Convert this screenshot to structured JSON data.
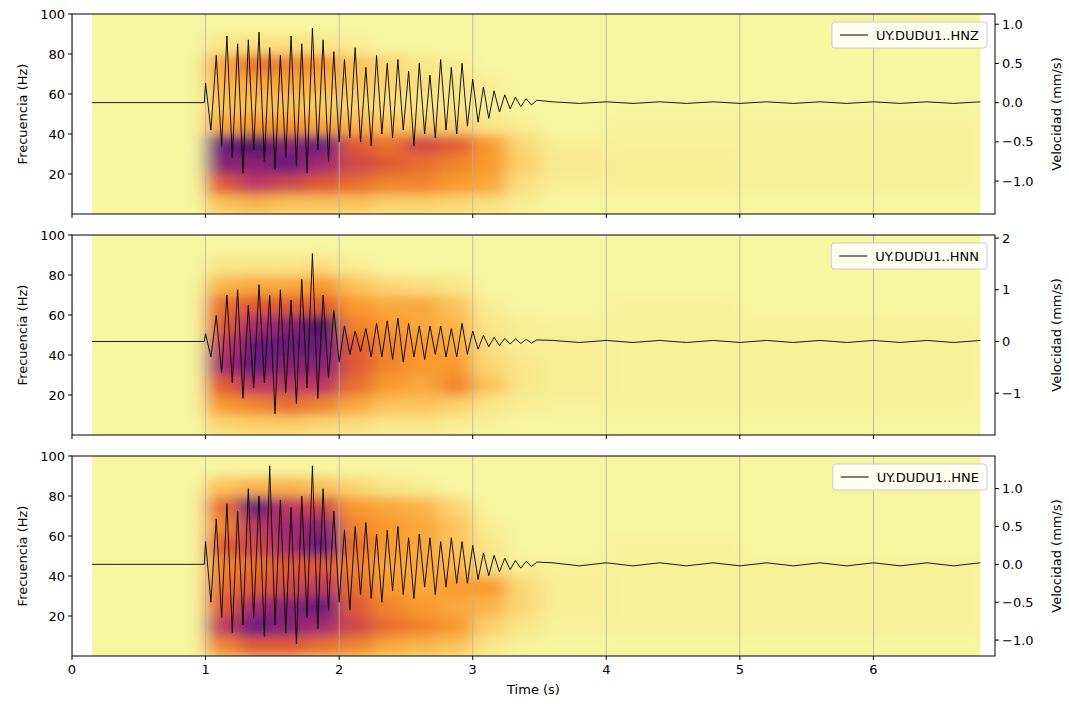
{
  "chart_data": [
    {
      "type": "spectrogram",
      "ylabel": "Frecuencia (Hz)",
      "y2label": "Velocidad (mm/s)",
      "legend": "upper right",
      "grid": true,
      "tick_labels": "y",
      "xlim": [
        0,
        6.91
      ],
      "xticks": [
        0,
        1,
        2,
        3,
        4,
        5,
        6
      ],
      "ylim": [
        0,
        100
      ],
      "yticks": [
        20,
        40,
        60,
        80,
        100
      ],
      "y2lim": [
        -1.42,
        1.13
      ],
      "y2ticks": [
        {
          "value": -1.0,
          "label": "−1.0"
        },
        {
          "value": -0.5,
          "label": "−0.5"
        },
        {
          "value": 0.0,
          "label": "0.0"
        },
        {
          "value": 0.5,
          "label": "0.5"
        },
        {
          "value": 1.0,
          "label": "1.0"
        }
      ],
      "time_edges": [
        0.15,
        1.0,
        1.25,
        1.5,
        1.75,
        2.0,
        2.25,
        2.5,
        2.75,
        3.0,
        3.25,
        3.5,
        4.0,
        5.0,
        6.8
      ],
      "freq_edges": [
        0,
        10,
        20,
        30,
        40,
        50,
        60,
        70,
        80,
        90,
        100
      ],
      "cells": [
        [
          0,
          0,
          0,
          0,
          0,
          0,
          0,
          0,
          0,
          0
        ],
        [
          0.3,
          0.6,
          0.8,
          0.85,
          0.4,
          0.3,
          0.35,
          0.4,
          0.1,
          0
        ],
        [
          0.35,
          0.7,
          0.8,
          0.9,
          0.45,
          0.3,
          0.4,
          0.55,
          0.15,
          0
        ],
        [
          0.3,
          0.65,
          0.85,
          0.8,
          0.45,
          0.3,
          0.4,
          0.5,
          0.15,
          0
        ],
        [
          0.3,
          0.6,
          0.75,
          0.85,
          0.4,
          0.25,
          0.35,
          0.45,
          0.1,
          0
        ],
        [
          0.3,
          0.55,
          0.65,
          0.6,
          0.35,
          0.2,
          0.3,
          0.3,
          0.05,
          0
        ],
        [
          0.25,
          0.5,
          0.6,
          0.55,
          0.3,
          0.15,
          0.2,
          0.2,
          0,
          0
        ],
        [
          0.25,
          0.5,
          0.55,
          0.65,
          0.25,
          0.1,
          0.15,
          0.1,
          0,
          0
        ],
        [
          0.2,
          0.45,
          0.5,
          0.6,
          0.2,
          0.1,
          0.1,
          0.05,
          0,
          0
        ],
        [
          0.15,
          0.4,
          0.45,
          0.45,
          0.1,
          0.05,
          0.05,
          0,
          0,
          0
        ],
        [
          0.05,
          0.15,
          0.25,
          0.2,
          0.05,
          0,
          0,
          0,
          0,
          0
        ],
        [
          0,
          0.05,
          0.08,
          0.05,
          0,
          0,
          0,
          0,
          0,
          0
        ],
        [
          0,
          0.05,
          0.05,
          0.03,
          0.03,
          0,
          0,
          0,
          0,
          0
        ],
        [
          0,
          0.03,
          0.03,
          0.03,
          0.03,
          0,
          0,
          0,
          0,
          0
        ]
      ],
      "x": [
        0.15,
        0.99,
        1.0,
        1.04,
        1.08,
        1.12,
        1.16,
        1.2,
        1.24,
        1.28,
        1.32,
        1.36,
        1.4,
        1.44,
        1.48,
        1.52,
        1.56,
        1.6,
        1.64,
        1.68,
        1.72,
        1.76,
        1.8,
        1.84,
        1.88,
        1.92,
        1.96,
        2.0,
        2.04,
        2.08,
        2.12,
        2.16,
        2.2,
        2.24,
        2.28,
        2.32,
        2.36,
        2.4,
        2.44,
        2.48,
        2.52,
        2.56,
        2.6,
        2.64,
        2.68,
        2.72,
        2.76,
        2.8,
        2.84,
        2.88,
        2.92,
        2.96,
        3.0,
        3.04,
        3.08,
        3.12,
        3.16,
        3.2,
        3.24,
        3.28,
        3.32,
        3.36,
        3.4,
        3.44,
        3.48,
        3.6,
        3.8,
        4.0,
        4.2,
        4.4,
        4.6,
        4.8,
        5.0,
        5.2,
        5.4,
        5.6,
        5.8,
        6.0,
        6.2,
        6.4,
        6.6,
        6.8
      ],
      "series": [
        {
          "name": "UY.DUDU1..HNZ",
          "color": "#000000",
          "axis": "y2",
          "values": [
            0,
            0,
            0.25,
            -0.35,
            0.6,
            -0.55,
            0.85,
            -0.7,
            0.75,
            -0.9,
            0.8,
            -0.6,
            0.9,
            -0.75,
            0.7,
            -0.85,
            0.6,
            -0.7,
            0.85,
            -0.8,
            0.75,
            -0.9,
            0.95,
            -0.6,
            0.8,
            -0.75,
            0.65,
            -0.5,
            0.55,
            -0.45,
            0.7,
            -0.5,
            0.45,
            -0.55,
            0.6,
            -0.4,
            0.5,
            -0.45,
            0.55,
            -0.35,
            0.4,
            -0.55,
            0.5,
            -0.4,
            0.35,
            -0.45,
            0.55,
            -0.35,
            0.45,
            -0.4,
            0.5,
            -0.3,
            0.3,
            -0.25,
            0.2,
            -0.2,
            0.15,
            -0.12,
            0.1,
            -0.08,
            0.07,
            -0.05,
            0.05,
            -0.03,
            0.03,
            0.01,
            -0.01,
            0.01,
            -0.01,
            0.01,
            -0.01,
            0.01,
            -0.01,
            0.01,
            -0.01,
            0.01,
            -0.01,
            0.01,
            -0.01,
            0.01,
            -0.01,
            0.01
          ]
        }
      ]
    },
    {
      "type": "spectrogram",
      "ylabel": "Frecuencia (Hz)",
      "y2label": "Velocidad (mm/s)",
      "legend": "upper right",
      "grid": true,
      "tick_labels": "y",
      "xlim": [
        0,
        6.91
      ],
      "xticks": [
        0,
        1,
        2,
        3,
        4,
        5,
        6
      ],
      "ylim": [
        0,
        100
      ],
      "yticks": [
        20,
        40,
        60,
        80,
        100
      ],
      "y2lim": [
        -1.81,
        2.06
      ],
      "y2ticks": [
        {
          "value": -1,
          "label": "−1"
        },
        0,
        1,
        2
      ],
      "time_edges": [
        0.15,
        1.0,
        1.25,
        1.5,
        1.75,
        2.0,
        2.25,
        2.5,
        2.75,
        3.0,
        3.25,
        3.5,
        4.0,
        5.0,
        6.8
      ],
      "freq_edges": [
        0,
        10,
        20,
        30,
        40,
        50,
        60,
        70,
        80,
        90,
        100
      ],
      "cells": [
        [
          0,
          0,
          0,
          0,
          0,
          0,
          0,
          0,
          0,
          0
        ],
        [
          0.2,
          0.45,
          0.6,
          0.75,
          0.7,
          0.6,
          0.55,
          0.35,
          0.1,
          0
        ],
        [
          0.25,
          0.5,
          0.7,
          0.85,
          0.85,
          0.75,
          0.6,
          0.4,
          0.1,
          0
        ],
        [
          0.25,
          0.55,
          0.7,
          0.8,
          0.85,
          0.8,
          0.6,
          0.4,
          0.1,
          0
        ],
        [
          0.2,
          0.5,
          0.7,
          0.8,
          0.85,
          0.9,
          0.6,
          0.45,
          0.15,
          0
        ],
        [
          0.15,
          0.4,
          0.55,
          0.6,
          0.6,
          0.5,
          0.45,
          0.3,
          0.05,
          0
        ],
        [
          0.1,
          0.3,
          0.45,
          0.5,
          0.5,
          0.45,
          0.4,
          0.2,
          0,
          0
        ],
        [
          0.1,
          0.3,
          0.4,
          0.45,
          0.45,
          0.4,
          0.4,
          0.15,
          0,
          0
        ],
        [
          0.05,
          0.25,
          0.5,
          0.45,
          0.4,
          0.35,
          0.3,
          0.1,
          0,
          0
        ],
        [
          0.03,
          0.1,
          0.3,
          0.2,
          0.15,
          0.1,
          0.05,
          0,
          0,
          0
        ],
        [
          0,
          0.05,
          0.1,
          0.1,
          0.05,
          0.05,
          0,
          0,
          0,
          0
        ],
        [
          0,
          0.03,
          0.05,
          0.05,
          0.05,
          0.03,
          0,
          0,
          0,
          0
        ],
        [
          0,
          0.03,
          0.03,
          0.03,
          0.03,
          0.03,
          0.03,
          0,
          0,
          0
        ],
        [
          0,
          0.03,
          0.03,
          0.03,
          0.03,
          0.03,
          0,
          0,
          0,
          0
        ]
      ],
      "x": [
        0.15,
        0.99,
        1.0,
        1.04,
        1.08,
        1.12,
        1.16,
        1.2,
        1.24,
        1.28,
        1.32,
        1.36,
        1.4,
        1.44,
        1.48,
        1.52,
        1.56,
        1.6,
        1.64,
        1.68,
        1.72,
        1.76,
        1.8,
        1.84,
        1.88,
        1.92,
        1.96,
        2.0,
        2.04,
        2.08,
        2.12,
        2.16,
        2.2,
        2.24,
        2.28,
        2.32,
        2.36,
        2.4,
        2.44,
        2.48,
        2.52,
        2.56,
        2.6,
        2.64,
        2.68,
        2.72,
        2.76,
        2.8,
        2.84,
        2.88,
        2.92,
        2.96,
        3.0,
        3.04,
        3.08,
        3.12,
        3.16,
        3.2,
        3.24,
        3.28,
        3.32,
        3.36,
        3.4,
        3.44,
        3.48,
        3.6,
        3.8,
        4.0,
        4.2,
        4.4,
        4.6,
        4.8,
        5.0,
        5.2,
        5.4,
        5.6,
        5.8,
        6.0,
        6.2,
        6.4,
        6.6,
        6.8
      ],
      "series": [
        {
          "name": "UY.DUDU1..HNN",
          "color": "#000000",
          "axis": "y2",
          "values": [
            0,
            0,
            0.15,
            -0.3,
            0.5,
            -0.6,
            0.9,
            -0.8,
            1.0,
            -1.1,
            0.7,
            -0.9,
            1.1,
            -0.8,
            0.9,
            -1.4,
            1.0,
            -1.0,
            0.8,
            -1.2,
            1.2,
            -0.9,
            1.7,
            -1.1,
            0.9,
            -0.7,
            0.6,
            -0.4,
            0.3,
            -0.25,
            0.2,
            -0.2,
            0.25,
            -0.3,
            0.35,
            -0.3,
            0.4,
            -0.35,
            0.45,
            -0.4,
            0.35,
            -0.3,
            0.3,
            -0.35,
            0.3,
            -0.25,
            0.3,
            -0.3,
            0.25,
            -0.3,
            0.35,
            -0.25,
            0.2,
            -0.15,
            0.12,
            -0.1,
            0.08,
            -0.08,
            0.06,
            -0.05,
            0.05,
            -0.04,
            0.04,
            -0.03,
            0.03,
            0.02,
            -0.02,
            0.02,
            -0.02,
            0.02,
            -0.02,
            0.02,
            -0.02,
            0.02,
            -0.02,
            0.02,
            -0.02,
            0.02,
            -0.02,
            0.02,
            -0.02,
            0.02
          ]
        }
      ]
    },
    {
      "type": "spectrogram",
      "xlabel": "Time (s)",
      "ylabel": "Frecuencia (Hz)",
      "y2label": "Velocidad (mm/s)",
      "legend": "upper right",
      "grid": true,
      "xlim": [
        0,
        6.91
      ],
      "xticks": [
        0,
        1,
        2,
        3,
        4,
        5,
        6
      ],
      "ylim": [
        0,
        100
      ],
      "yticks": [
        20,
        40,
        60,
        80,
        100
      ],
      "y2lim": [
        -1.21,
        1.43
      ],
      "y2ticks": [
        {
          "value": -1.0,
          "label": "−1.0"
        },
        {
          "value": -0.5,
          "label": "−0.5"
        },
        {
          "value": 0.0,
          "label": "0.0"
        },
        {
          "value": 0.5,
          "label": "0.5"
        },
        {
          "value": 1.0,
          "label": "1.0"
        }
      ],
      "time_edges": [
        0.15,
        1.0,
        1.25,
        1.5,
        1.75,
        2.0,
        2.25,
        2.5,
        2.75,
        3.0,
        3.25,
        3.5,
        4.0,
        5.0,
        6.8
      ],
      "freq_edges": [
        0,
        10,
        20,
        30,
        40,
        50,
        60,
        70,
        80,
        90,
        100
      ],
      "cells": [
        [
          0,
          0,
          0,
          0,
          0,
          0,
          0,
          0,
          0,
          0
        ],
        [
          0.5,
          0.7,
          0.6,
          0.55,
          0.5,
          0.6,
          0.5,
          0.55,
          0.3,
          0
        ],
        [
          0.6,
          0.85,
          0.75,
          0.6,
          0.55,
          0.65,
          0.7,
          0.85,
          0.35,
          0
        ],
        [
          0.6,
          0.8,
          0.8,
          0.65,
          0.6,
          0.75,
          0.75,
          0.7,
          0.35,
          0
        ],
        [
          0.55,
          0.75,
          0.85,
          0.7,
          0.6,
          0.85,
          0.8,
          0.65,
          0.3,
          0
        ],
        [
          0.5,
          0.65,
          0.6,
          0.55,
          0.5,
          0.55,
          0.5,
          0.45,
          0.2,
          0
        ],
        [
          0.4,
          0.55,
          0.5,
          0.45,
          0.4,
          0.45,
          0.45,
          0.4,
          0.1,
          0
        ],
        [
          0.35,
          0.5,
          0.45,
          0.4,
          0.4,
          0.4,
          0.4,
          0.35,
          0.05,
          0
        ],
        [
          0.3,
          0.45,
          0.4,
          0.45,
          0.35,
          0.3,
          0.3,
          0.2,
          0,
          0
        ],
        [
          0.1,
          0.25,
          0.35,
          0.45,
          0.15,
          0.1,
          0.05,
          0,
          0,
          0
        ],
        [
          0.03,
          0.1,
          0.2,
          0.2,
          0.05,
          0,
          0,
          0,
          0,
          0
        ],
        [
          0,
          0.03,
          0.05,
          0.05,
          0.03,
          0,
          0,
          0,
          0,
          0
        ],
        [
          0,
          0.03,
          0.03,
          0.03,
          0.03,
          0.03,
          0,
          0,
          0,
          0
        ],
        [
          0,
          0.03,
          0.03,
          0.03,
          0.03,
          0,
          0,
          0,
          0,
          0
        ]
      ],
      "x": [
        0.15,
        0.99,
        1.0,
        1.04,
        1.08,
        1.12,
        1.16,
        1.2,
        1.24,
        1.28,
        1.32,
        1.36,
        1.4,
        1.44,
        1.48,
        1.52,
        1.56,
        1.6,
        1.64,
        1.68,
        1.72,
        1.76,
        1.8,
        1.84,
        1.88,
        1.92,
        1.96,
        2.0,
        2.04,
        2.08,
        2.12,
        2.16,
        2.2,
        2.24,
        2.28,
        2.32,
        2.36,
        2.4,
        2.44,
        2.48,
        2.52,
        2.56,
        2.6,
        2.64,
        2.68,
        2.72,
        2.76,
        2.8,
        2.84,
        2.88,
        2.92,
        2.96,
        3.0,
        3.04,
        3.08,
        3.12,
        3.16,
        3.2,
        3.24,
        3.28,
        3.32,
        3.36,
        3.4,
        3.44,
        3.48,
        3.6,
        3.8,
        4.0,
        4.2,
        4.4,
        4.6,
        4.8,
        5.0,
        5.2,
        5.4,
        5.6,
        5.8,
        6.0,
        6.2,
        6.4,
        6.6,
        6.8
      ],
      "series": [
        {
          "name": "UY.DUDU1..HNE",
          "color": "#000000",
          "axis": "y2",
          "values": [
            0,
            0,
            0.3,
            -0.5,
            0.6,
            -0.7,
            0.8,
            -0.9,
            0.7,
            -0.8,
            1.0,
            -0.7,
            0.9,
            -0.95,
            1.3,
            -0.8,
            0.85,
            -0.9,
            0.75,
            -1.05,
            0.9,
            -0.7,
            1.3,
            -0.85,
            1.0,
            -0.6,
            0.7,
            -0.5,
            0.45,
            -0.6,
            0.5,
            -0.4,
            0.55,
            -0.45,
            0.4,
            -0.5,
            0.45,
            -0.35,
            0.5,
            -0.4,
            0.35,
            -0.45,
            0.4,
            -0.3,
            0.35,
            -0.4,
            0.3,
            -0.3,
            0.35,
            -0.25,
            0.3,
            -0.25,
            0.25,
            -0.2,
            0.15,
            -0.15,
            0.12,
            -0.1,
            0.08,
            -0.07,
            0.05,
            -0.05,
            0.04,
            -0.03,
            0.03,
            0.02,
            -0.02,
            0.02,
            -0.02,
            0.02,
            -0.02,
            0.02,
            -0.02,
            0.02,
            -0.02,
            0.02,
            -0.02,
            0.02,
            -0.02,
            0.02,
            -0.02,
            0.02
          ]
        }
      ]
    }
  ]
}
